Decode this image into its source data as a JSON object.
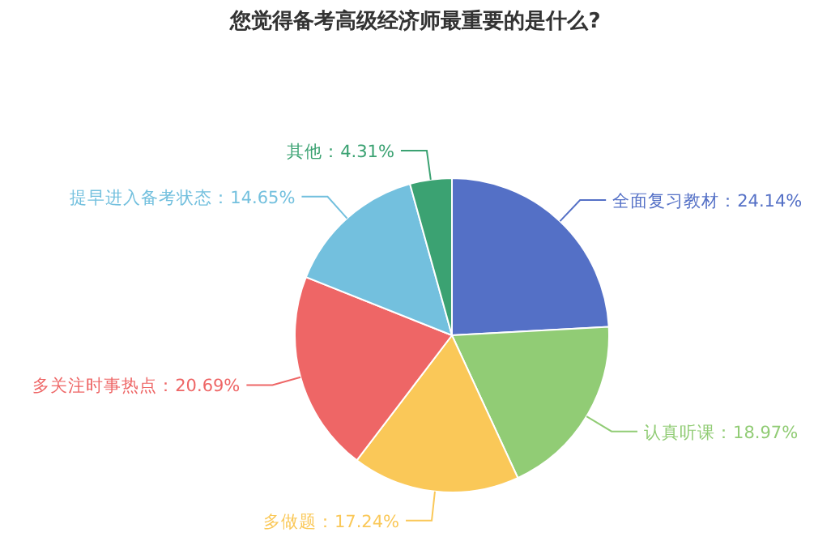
{
  "chart_data": {
    "type": "pie",
    "title": "您觉得备考高级经济师最重要的是什么?",
    "categories": [
      "全面复习教材",
      "认真听课",
      "多做题",
      "多关注时事热点",
      "提早进入备考状态",
      "其他"
    ],
    "values": [
      24.14,
      18.97,
      17.24,
      20.69,
      14.65,
      4.31
    ],
    "value_labels": [
      "24.14%",
      "18.97%",
      "17.24%",
      "20.69%",
      "14.65%",
      "4.31%"
    ],
    "colors": [
      "#5470c6",
      "#91cc75",
      "#fac858",
      "#ee6666",
      "#73c0de",
      "#3ba272"
    ]
  }
}
